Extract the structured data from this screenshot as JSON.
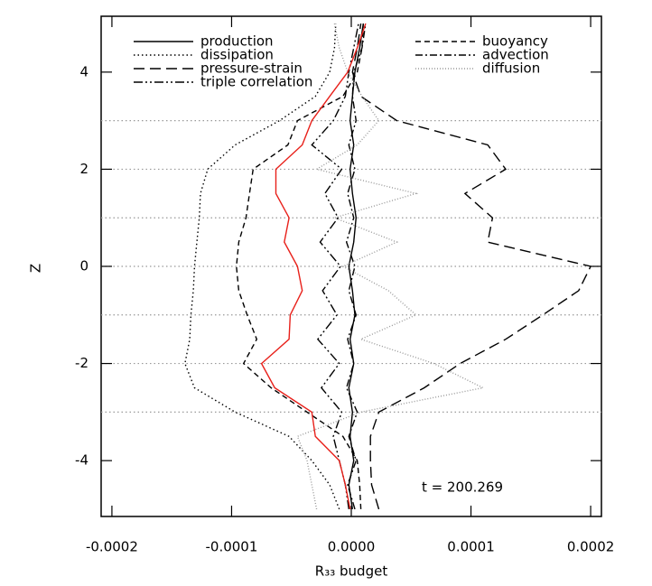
{
  "chart_data": {
    "type": "line",
    "xlabel": "R₃₃ budget",
    "ylabel": "Z",
    "annotation": "t = 200.269",
    "xlim": [
      -0.000209,
      0.000209
    ],
    "ylim": [
      -5.15,
      5.15
    ],
    "xticks": [
      -0.0002,
      -0.0001,
      {
        "value": 0,
        "label": "0.0000"
      },
      0.0001,
      0.0002
    ],
    "yticks": [
      -4,
      -2,
      0,
      2,
      4
    ],
    "hlines": [
      -3,
      -2,
      -1,
      0,
      1,
      2,
      3
    ],
    "z": [
      -5,
      -4.5,
      -4,
      -3.5,
      -3,
      -2.5,
      -2,
      -1.5,
      -1,
      -0.5,
      0,
      0.5,
      1,
      1.5,
      2,
      2.5,
      3,
      3.5,
      4,
      4.5,
      5
    ],
    "series": [
      {
        "name": "production",
        "color": "#000000",
        "dash": "",
        "values": [
          1e-06,
          -2e-06,
          2e-06,
          -1e-06,
          1e-06,
          -2e-06,
          2e-06,
          -1e-06,
          3e-06,
          1e-06,
          -2e-06,
          2e-06,
          4e-06,
          1e-06,
          -1e-06,
          2e-06,
          -1e-06,
          1e-06,
          3e-06,
          7e-06,
          1e-05
        ]
      },
      {
        "name": "dissipation",
        "color": "#000000",
        "dash": "1.5 3",
        "values": [
          -1e-05,
          -1.8e-05,
          -3.3e-05,
          -5.2e-05,
          -9.7e-05,
          -0.000131,
          -0.000139,
          -0.000135,
          -0.000134,
          -0.000132,
          -0.000131,
          -0.000129,
          -0.000127,
          -0.000126,
          -0.00012,
          -9.7e-05,
          -6e-05,
          -3e-05,
          -1.8e-05,
          -1.4e-05,
          -1.3e-05
        ]
      },
      {
        "name": "pressure-strain",
        "color": "#000000",
        "dash": "12 6",
        "values": [
          2.3e-05,
          1.7e-05,
          1.6e-05,
          1.6e-05,
          2.3e-05,
          6.1e-05,
          9.1e-05,
          0.000129,
          0.00016,
          0.00019,
          0.0002,
          0.000114,
          0.000118,
          9.5e-05,
          0.000129,
          0.000114,
          3.8e-05,
          8e-06,
          1e-06,
          5e-06,
          8e-06
        ]
      },
      {
        "name": "triple correlation",
        "color": "#000000",
        "dash": "10 3 2 3 2 3",
        "values": [
          -2e-06,
          -5e-06,
          -1e-05,
          -1.5e-05,
          -8e-06,
          -2.5e-05,
          -1e-05,
          -2.8e-05,
          -1.2e-05,
          -2.4e-05,
          -9e-06,
          -2.6e-05,
          -1.1e-05,
          -2.2e-05,
          -8e-06,
          -3.3e-05,
          -1.5e-05,
          -5e-06,
          -2e-06,
          2e-06,
          6e-06
        ]
      },
      {
        "name": "buoyancy",
        "color": "#000000",
        "dash": "6 4",
        "values": [
          8e-06,
          7e-06,
          5e-06,
          -7e-06,
          -3.7e-05,
          -6.7e-05,
          -9e-05,
          -7.9e-05,
          -8.7e-05,
          -9.4e-05,
          -9.6e-05,
          -9.4e-05,
          -8.8e-05,
          -8.5e-05,
          -8.2e-05,
          -5.3e-05,
          -4.5e-05,
          -7e-06,
          5e-06,
          9e-06,
          1e-05
        ]
      },
      {
        "name": "advection",
        "color": "#000000",
        "dash": "8 3 2 3",
        "values": [
          3e-06,
          -3e-06,
          4e-06,
          -2e-06,
          5e-06,
          -4e-06,
          2e-06,
          -3e-06,
          4e-06,
          -2e-06,
          3e-06,
          -4e-06,
          2e-06,
          -3e-06,
          3e-06,
          -2e-06,
          4e-06,
          1e-06,
          2e-06,
          9e-06,
          1.2e-05
        ]
      },
      {
        "name": "diffusion",
        "color": "#999999",
        "dash": "1 2",
        "values": [
          -2.9e-05,
          -3.3e-05,
          -3.7e-05,
          -4.5e-05,
          8e-06,
          0.00011,
          6.9e-05,
          8e-06,
          5.4e-05,
          3.1e-05,
          -7e-06,
          3.8e-05,
          -1.4e-05,
          5.4e-05,
          -2.9e-05,
          5e-06,
          2.3e-05,
          9e-06,
          -3e-06,
          -1e-05,
          -1.4e-05
        ]
      },
      {
        "color": "#e8201a",
        "dash": "",
        "values": [
          -1e-06,
          -5e-06,
          -1e-05,
          -3e-05,
          -3.3e-05,
          -6.4e-05,
          -7.5e-05,
          -5.2e-05,
          -5.1e-05,
          -4.1e-05,
          -4.5e-05,
          -5.6e-05,
          -5.2e-05,
          -6.3e-05,
          -6.3e-05,
          -4.1e-05,
          -3.3e-05,
          -1.8e-05,
          -3e-06,
          5e-06,
          1.2e-05
        ]
      }
    ]
  }
}
